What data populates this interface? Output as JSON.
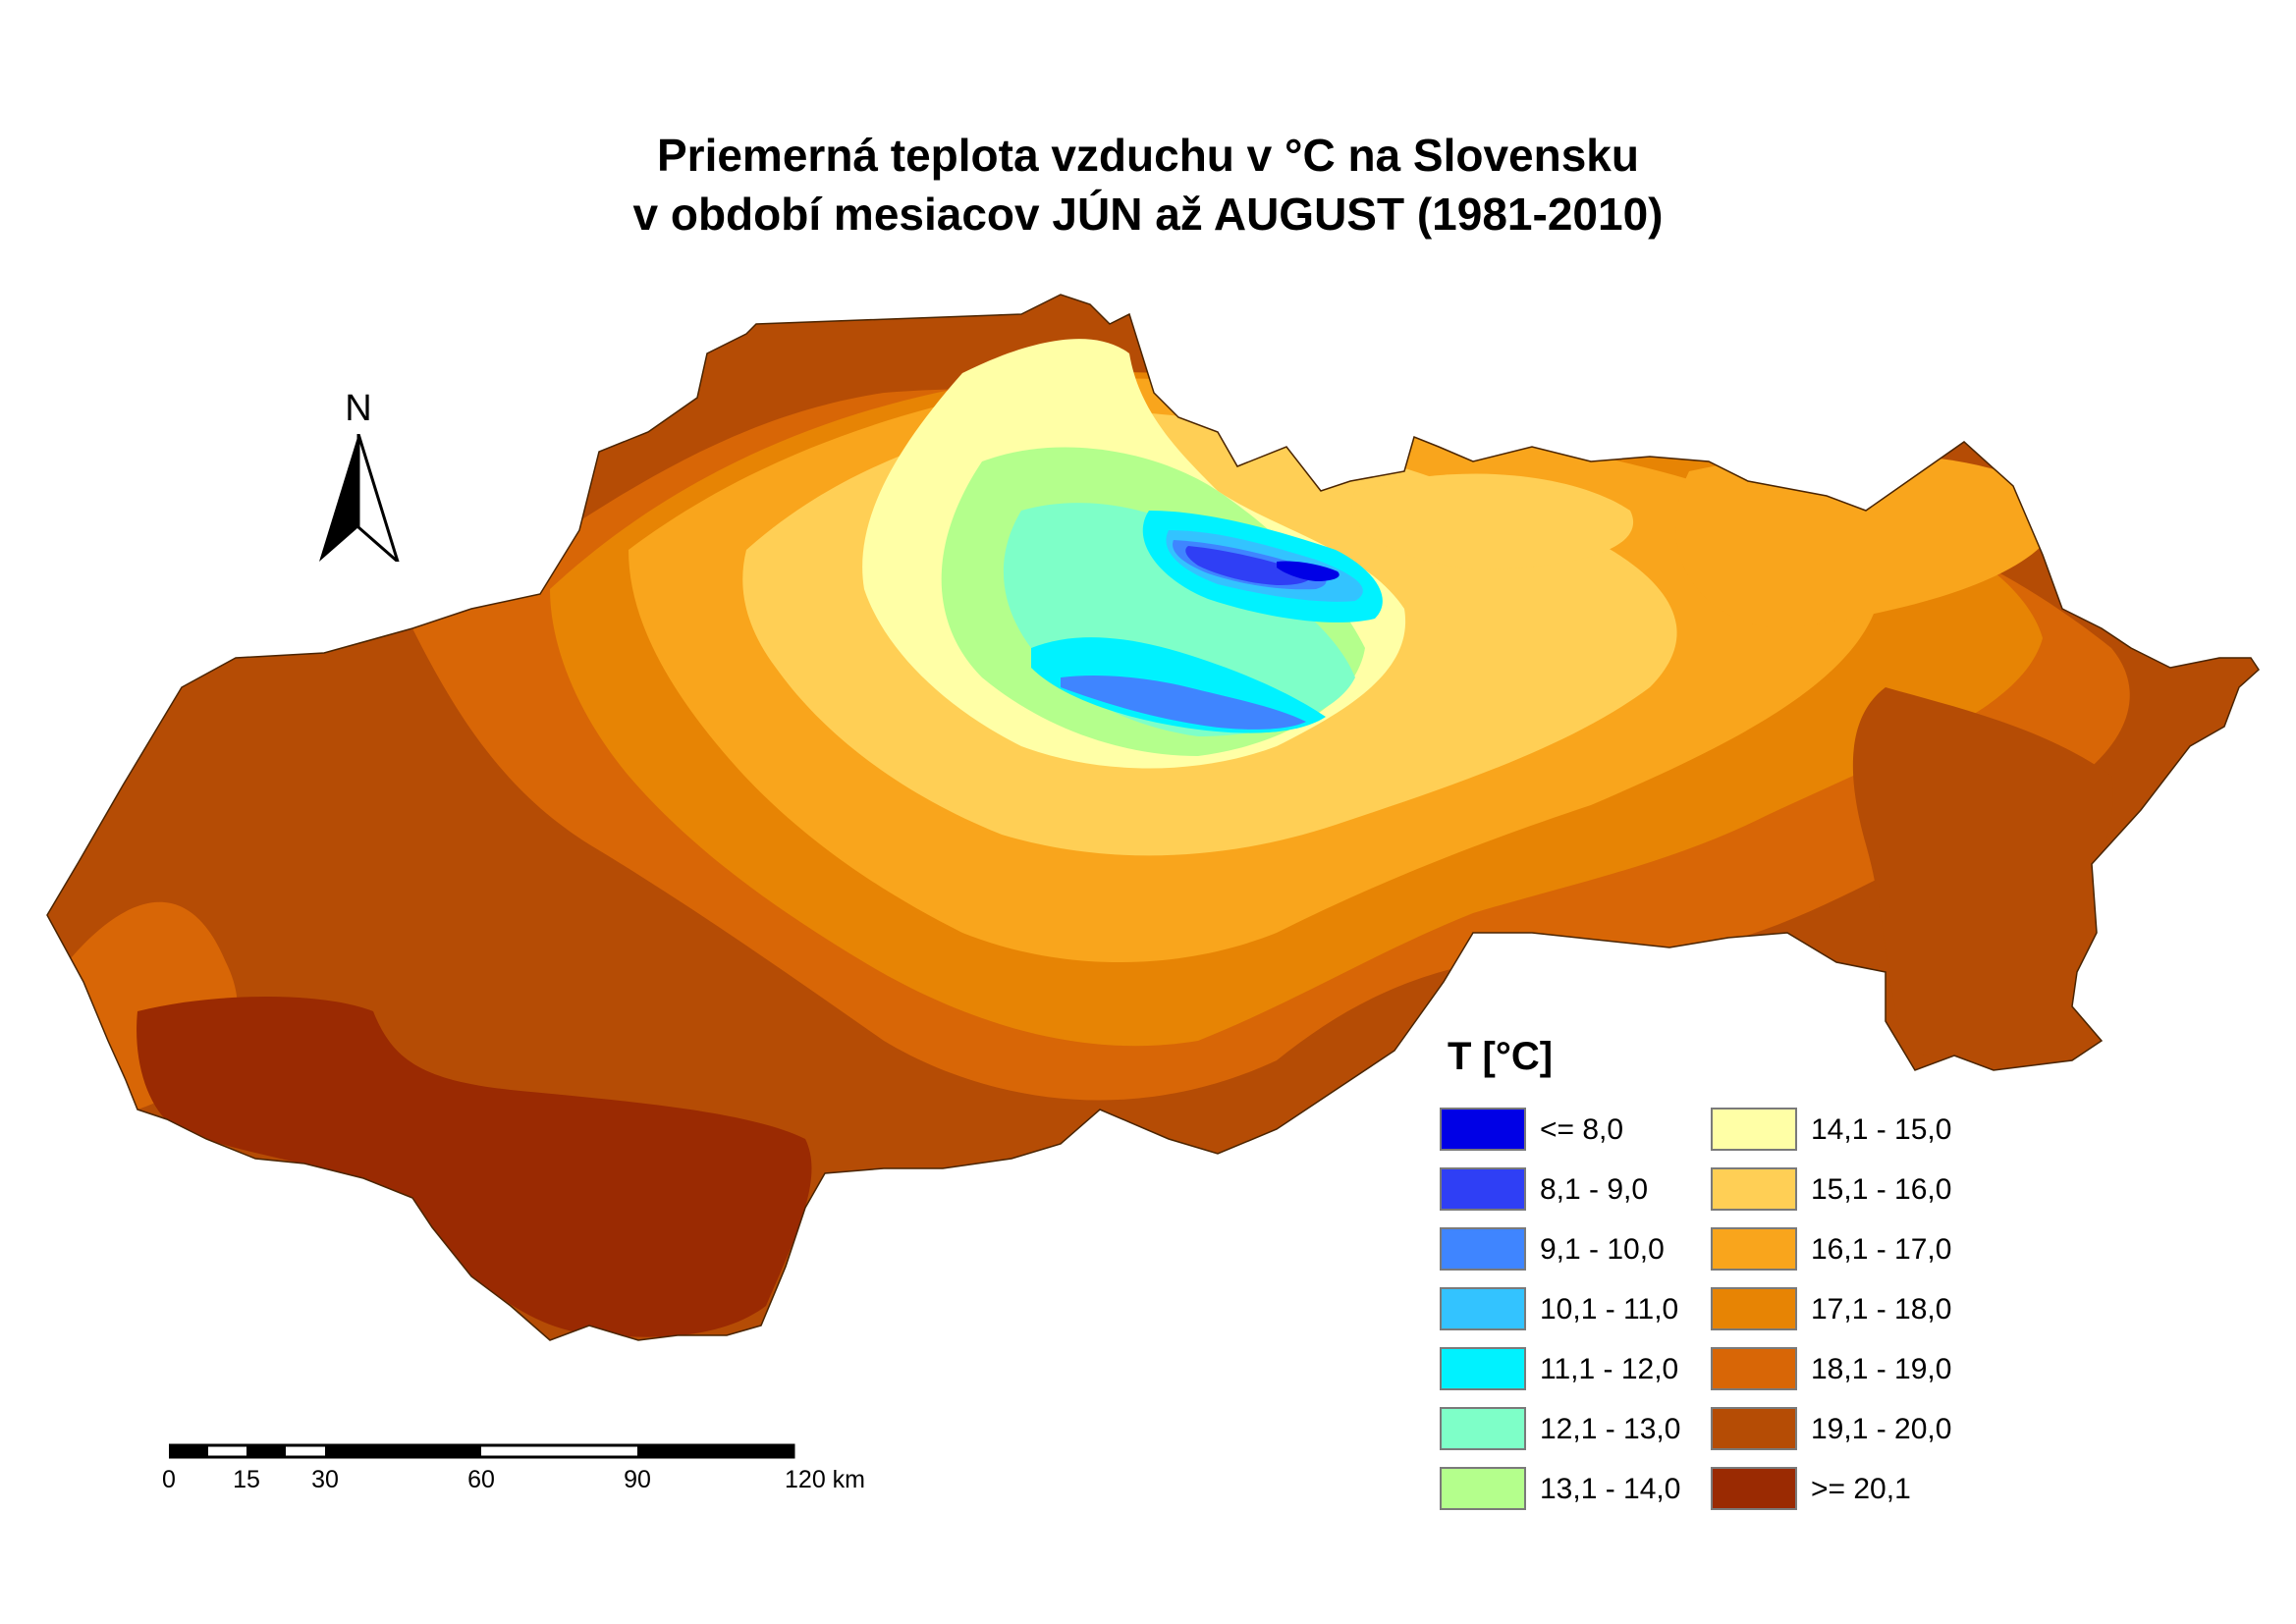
{
  "title": {
    "line1": "Priemerná teplota vzduchu v °C na Slovensku",
    "line2": "v období mesiacov JÚN až AUGUST (1981-2010)"
  },
  "north_label": "N",
  "scalebar": {
    "ticks": [
      "0",
      "15",
      "30",
      "60",
      "90",
      "120 km"
    ]
  },
  "legend": {
    "title": "T [°C]",
    "classes": [
      {
        "label": "<= 8,0",
        "color": "#0000e6"
      },
      {
        "label": "8,1 - 9,0",
        "color": "#2f3ff5"
      },
      {
        "label": "9,1 - 10,0",
        "color": "#3f85ff"
      },
      {
        "label": "10,1 - 11,0",
        "color": "#33c3ff"
      },
      {
        "label": "11,1 - 12,0",
        "color": "#00f2ff"
      },
      {
        "label": "12,1 - 13,0",
        "color": "#7effc8"
      },
      {
        "label": "13,1 - 14,0",
        "color": "#b4ff8c"
      },
      {
        "label": "14,1 - 15,0",
        "color": "#ffffa6"
      },
      {
        "label": "15,1 - 16,0",
        "color": "#ffcf55"
      },
      {
        "label": "16,1 - 17,0",
        "color": "#f9a51c"
      },
      {
        "label": "17,1 - 18,0",
        "color": "#e78404"
      },
      {
        "label": "18,1 - 19,0",
        "color": "#d86606"
      },
      {
        "label": "19,1 - 20,0",
        "color": "#b54c05"
      },
      {
        "label": ">= 20,1",
        "color": "#9a2a02"
      }
    ]
  }
}
